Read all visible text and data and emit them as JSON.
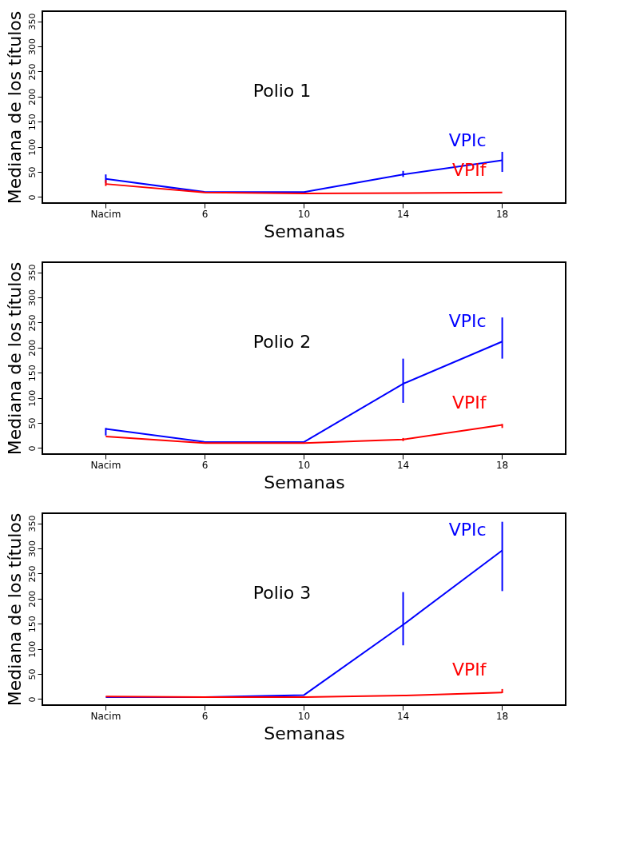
{
  "chart_data": [
    {
      "type": "line",
      "xlabel": "Semanas",
      "ylabel": "Mediana de los títulos",
      "categories": [
        "Nacim",
        "6",
        "10",
        "14",
        "18"
      ],
      "ylim": [
        -12,
        370
      ],
      "yticks": [
        0,
        50,
        100,
        150,
        200,
        250,
        300,
        350
      ],
      "annotations": [
        "Polio 1"
      ],
      "series": [
        {
          "name": "VPIc",
          "color": "#0000ff",
          "values": [
            36,
            10,
            10,
            45,
            73
          ],
          "errors": [
            [
              28,
              45
            ],
            null,
            null,
            [
              40,
              52
            ],
            [
              50,
              90
            ]
          ]
        },
        {
          "name": "VPIf",
          "color": "#ff0000",
          "values": [
            26,
            9,
            7,
            8,
            9
          ],
          "errors": [
            [
              22,
              34
            ],
            null,
            null,
            null,
            null
          ]
        }
      ]
    },
    {
      "type": "line",
      "xlabel": "Semanas",
      "ylabel": "Mediana de los títulos",
      "categories": [
        "Nacim",
        "6",
        "10",
        "14",
        "18"
      ],
      "ylim": [
        -12,
        370
      ],
      "yticks": [
        0,
        50,
        100,
        150,
        200,
        250,
        300,
        350
      ],
      "annotations": [
        "Polio 2"
      ],
      "series": [
        {
          "name": "VPIc",
          "color": "#0000ff",
          "values": [
            38,
            12,
            12,
            128,
            212
          ],
          "errors": [
            [
              25,
              40
            ],
            null,
            null,
            [
              90,
              178
            ],
            [
              178,
              260
            ]
          ]
        },
        {
          "name": "VPIf",
          "color": "#ff0000",
          "values": [
            23,
            10,
            10,
            17,
            46
          ],
          "errors": [
            null,
            null,
            null,
            [
              14,
              20
            ],
            [
              40,
              48
            ]
          ]
        }
      ]
    },
    {
      "type": "line",
      "xlabel": "Semanas",
      "ylabel": "Mediana de los títulos",
      "categories": [
        "Nacim",
        "6",
        "10",
        "14",
        "18"
      ],
      "ylim": [
        -12,
        370
      ],
      "yticks": [
        0,
        50,
        100,
        150,
        200,
        250,
        300,
        350
      ],
      "annotations": [
        "Polio 3"
      ],
      "series": [
        {
          "name": "VPIc",
          "color": "#0000ff",
          "values": [
            4,
            4,
            8,
            148,
            296
          ],
          "errors": [
            null,
            null,
            null,
            [
              107,
              213
            ],
            [
              215,
              353
            ]
          ]
        },
        {
          "name": "VPIf",
          "color": "#ff0000",
          "values": [
            5,
            4,
            4,
            7,
            13
          ],
          "errors": [
            null,
            null,
            null,
            null,
            [
              12,
              20
            ]
          ]
        }
      ]
    }
  ]
}
